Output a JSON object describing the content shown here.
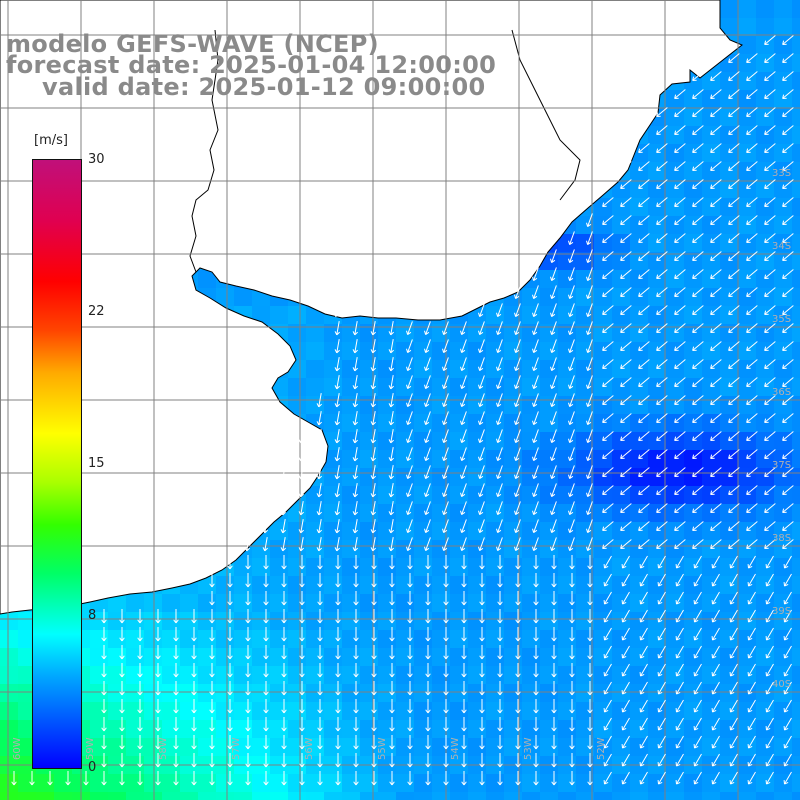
{
  "titles": {
    "model": "modelo GEFS-WAVE (NCEP)",
    "forecast": "forecast date: 2025-01-04 12:00:00",
    "valid": "valid date: 2025-01-12 09:00:00"
  },
  "colorbar": {
    "unit": "[m/s]",
    "ticks": [
      "30",
      "22",
      "15",
      "8",
      "0"
    ],
    "min": 0,
    "max": 30,
    "colors": [
      "#0000ff",
      "#00a6ff",
      "#00ffff",
      "#00ff66",
      "#33ff00",
      "#aaff00",
      "#ffff00",
      "#ffaa00",
      "#ff4400",
      "#ff0000",
      "#e00050",
      "#c0107a"
    ]
  },
  "map": {
    "lat_labels": [
      "33S",
      "34S",
      "35S",
      "36S",
      "37S",
      "38S",
      "39S",
      "40S"
    ],
    "lon_labels": [
      "60W",
      "59W",
      "58W",
      "57W",
      "56W",
      "55W",
      "54W",
      "53W",
      "52W"
    ],
    "land_color": "#ffffff",
    "coast_color": "#000000",
    "grid_color": "#808080",
    "arrow_color": "#ffffff"
  }
}
